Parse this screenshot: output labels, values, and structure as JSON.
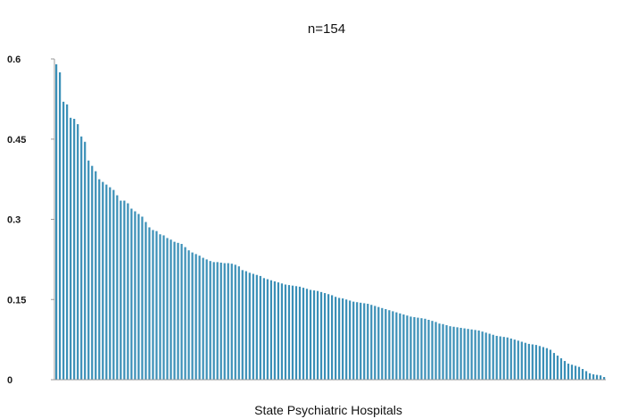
{
  "chart_data": {
    "type": "bar",
    "title": "n=154",
    "xlabel": "State Psychiatric Hospitals",
    "ylabel": "",
    "ylim": [
      0,
      0.6
    ],
    "yticks": [
      0,
      0.15,
      0.3,
      0.45,
      0.6
    ],
    "ytick_labels": [
      "0",
      "0.15",
      "0.3",
      "0.45",
      "0.6"
    ],
    "x_tick_labels_shown": false,
    "grid": false,
    "legend": "none",
    "n_bars": 154,
    "bar_color": "#3a8fb7",
    "values": [
      0.59,
      0.575,
      0.52,
      0.515,
      0.49,
      0.488,
      0.478,
      0.455,
      0.445,
      0.41,
      0.4,
      0.39,
      0.375,
      0.37,
      0.365,
      0.36,
      0.355,
      0.345,
      0.335,
      0.335,
      0.33,
      0.32,
      0.315,
      0.31,
      0.305,
      0.295,
      0.285,
      0.28,
      0.278,
      0.272,
      0.27,
      0.265,
      0.262,
      0.258,
      0.256,
      0.254,
      0.248,
      0.242,
      0.238,
      0.235,
      0.232,
      0.228,
      0.225,
      0.222,
      0.22,
      0.22,
      0.219,
      0.218,
      0.218,
      0.217,
      0.215,
      0.212,
      0.205,
      0.203,
      0.2,
      0.198,
      0.196,
      0.194,
      0.19,
      0.188,
      0.186,
      0.184,
      0.182,
      0.18,
      0.178,
      0.177,
      0.176,
      0.175,
      0.174,
      0.172,
      0.17,
      0.168,
      0.167,
      0.166,
      0.164,
      0.162,
      0.16,
      0.158,
      0.155,
      0.153,
      0.152,
      0.15,
      0.148,
      0.146,
      0.145,
      0.144,
      0.143,
      0.142,
      0.14,
      0.138,
      0.136,
      0.134,
      0.132,
      0.13,
      0.128,
      0.126,
      0.124,
      0.122,
      0.12,
      0.118,
      0.117,
      0.116,
      0.115,
      0.114,
      0.112,
      0.11,
      0.108,
      0.105,
      0.104,
      0.102,
      0.1,
      0.099,
      0.098,
      0.097,
      0.096,
      0.095,
      0.094,
      0.093,
      0.092,
      0.09,
      0.088,
      0.086,
      0.084,
      0.082,
      0.081,
      0.08,
      0.079,
      0.077,
      0.075,
      0.073,
      0.071,
      0.069,
      0.067,
      0.066,
      0.065,
      0.063,
      0.061,
      0.059,
      0.056,
      0.05,
      0.045,
      0.04,
      0.035,
      0.03,
      0.028,
      0.026,
      0.024,
      0.02,
      0.016,
      0.012,
      0.01,
      0.009,
      0.008,
      0.005
    ]
  }
}
